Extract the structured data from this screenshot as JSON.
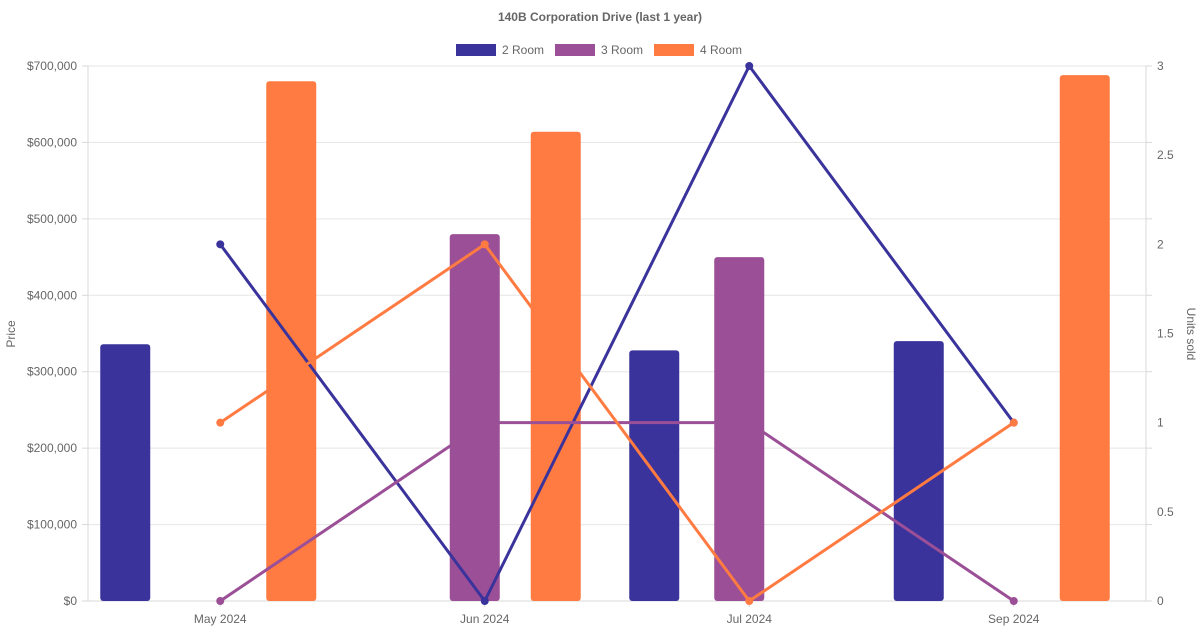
{
  "chart_data": {
    "type": "bar",
    "title": "140B Corporation Drive (last 1 year)",
    "categories": [
      "May 2024",
      "Jun 2024",
      "Jul 2024",
      "Sep 2024"
    ],
    "ylabel": "Price",
    "y2label": "Units sold",
    "ylim": [
      0,
      700000
    ],
    "y2lim": [
      0,
      3
    ],
    "y_ticks": [
      "$0",
      "$100,000",
      "$200,000",
      "$300,000",
      "$400,000",
      "$500,000",
      "$600,000",
      "$700,000"
    ],
    "y2_ticks": [
      "0",
      "0.5",
      "1",
      "1.5",
      "2",
      "2.5",
      "3"
    ],
    "legend_position": "top-center",
    "grid": true,
    "series": [
      {
        "name": "2 Room",
        "color": "#3a339c",
        "price": [
          336000,
          null,
          328000,
          340000
        ],
        "units_sold": [
          2,
          0,
          3,
          1
        ]
      },
      {
        "name": "3 Room",
        "color": "#9b4f96",
        "price": [
          null,
          480000,
          450000,
          null
        ],
        "units_sold": [
          0,
          1,
          1,
          0
        ]
      },
      {
        "name": "4 Room",
        "color": "#ff7b42",
        "price": [
          680000,
          614000,
          null,
          688000
        ],
        "units_sold": [
          1,
          2,
          0,
          1
        ]
      }
    ]
  }
}
